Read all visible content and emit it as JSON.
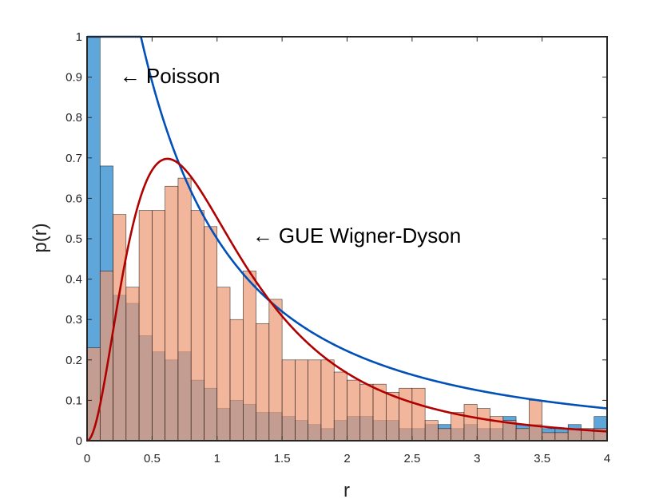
{
  "chart_data": {
    "type": "bar",
    "subtype": "overlaid-histogram-with-density-curves",
    "title": "",
    "xlabel": "r",
    "ylabel": "p(r)",
    "xlim": [
      0,
      4
    ],
    "ylim": [
      0,
      1
    ],
    "xticks": [
      0,
      0.5,
      1,
      1.5,
      2,
      2.5,
      3,
      3.5,
      4
    ],
    "xtick_labels": [
      "0",
      "0.5",
      "1",
      "1.5",
      "2",
      "2.5",
      "3",
      "3.5",
      "4"
    ],
    "yticks": [
      0,
      0.1,
      0.2,
      0.3,
      0.4,
      0.5,
      0.6,
      0.7,
      0.8,
      0.9,
      1
    ],
    "ytick_labels": [
      "0",
      "0.1",
      "0.2",
      "0.3",
      "0.4",
      "0.5",
      "0.6",
      "0.7",
      "0.8",
      "0.9",
      "1"
    ],
    "grid": false,
    "bin_width": 0.1,
    "bin_starts": [
      0.0,
      0.1,
      0.2,
      0.3,
      0.4,
      0.5,
      0.6,
      0.7,
      0.8,
      0.9,
      1.0,
      1.1,
      1.2,
      1.3,
      1.4,
      1.5,
      1.6,
      1.7,
      1.8,
      1.9,
      2.0,
      2.1,
      2.2,
      2.3,
      2.4,
      2.5,
      2.6,
      2.7,
      2.8,
      2.9,
      3.0,
      3.1,
      3.2,
      3.3,
      3.4,
      3.5,
      3.6,
      3.7,
      3.8,
      3.9
    ],
    "histograms": [
      {
        "color": "#0072BD",
        "fill": "#5fa7da",
        "values": [
          1.0,
          0.68,
          0.36,
          0.34,
          0.26,
          0.22,
          0.2,
          0.22,
          0.15,
          0.13,
          0.08,
          0.1,
          0.09,
          0.07,
          0.07,
          0.06,
          0.05,
          0.04,
          0.03,
          0.05,
          0.06,
          0.06,
          0.05,
          0.05,
          0.03,
          0.03,
          0.04,
          0.04,
          0.03,
          0.04,
          0.03,
          0.03,
          0.06,
          0.04,
          0.04,
          0.03,
          0.03,
          0.04,
          0.03,
          0.06
        ]
      },
      {
        "color": "#D95319",
        "fill": "#ec9a76",
        "values": [
          0.23,
          0.42,
          0.56,
          0.38,
          0.57,
          0.57,
          0.63,
          0.65,
          0.57,
          0.53,
          0.38,
          0.3,
          0.42,
          0.29,
          0.35,
          0.2,
          0.2,
          0.2,
          0.2,
          0.17,
          0.15,
          0.14,
          0.14,
          0.12,
          0.13,
          0.13,
          0.05,
          0.03,
          0.07,
          0.09,
          0.08,
          0.06,
          0.05,
          0.03,
          0.1,
          0.02,
          0.02,
          0.03,
          0.03,
          0.03
        ]
      }
    ],
    "curves": [
      {
        "name": "Poisson",
        "color": "#0050b8",
        "formula": "2/(1+r)^2"
      },
      {
        "name": "GUE Wigner-Dyson",
        "color": "#b00000",
        "formula": "(81*sqrt(3)/(4*pi)) * (r+r^2)^2 / (1+r+r^2)^4"
      }
    ],
    "annotations": [
      {
        "text": "← Poisson",
        "x": 0.25,
        "y": 0.885
      },
      {
        "text": "← GUE Wigner-Dyson",
        "x": 1.27,
        "y": 0.49
      }
    ]
  }
}
